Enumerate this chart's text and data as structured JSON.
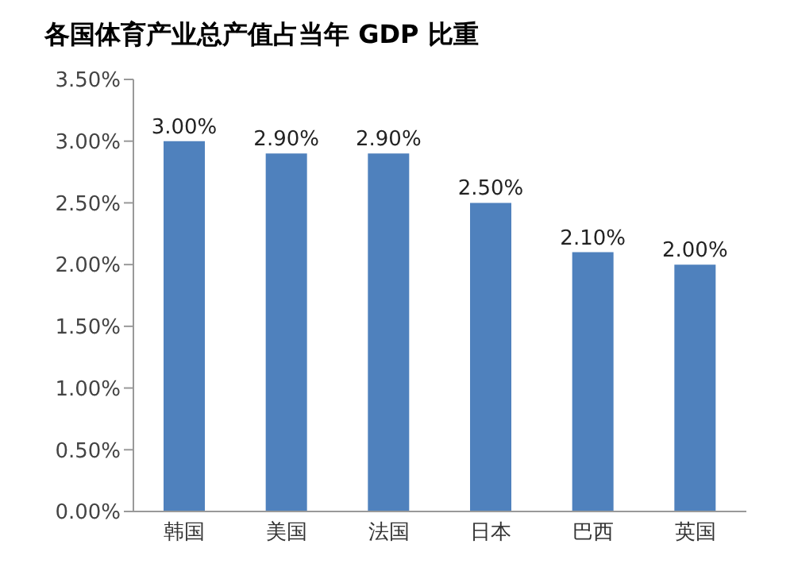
{
  "chart_data": {
    "type": "bar",
    "title": "各国体育产业总产值占当年 GDP 比重",
    "categories": [
      "韩国",
      "美国",
      "法国",
      "日本",
      "巴西",
      "英国"
    ],
    "values": [
      3.0,
      2.9,
      2.9,
      2.5,
      2.1,
      2.0
    ],
    "value_labels": [
      "3.00%",
      "2.90%",
      "2.90%",
      "2.50%",
      "2.10%",
      "2.00%"
    ],
    "color": "#4f81bd",
    "ylim": [
      0,
      3.5
    ],
    "yticks": [
      {
        "value": 0,
        "label": "0.00%"
      },
      {
        "value": 0.5,
        "label": "0.50%"
      },
      {
        "value": 1,
        "label": "1.00%"
      },
      {
        "value": 1.5,
        "label": "1.50%"
      },
      {
        "value": 2,
        "label": "2.00%"
      },
      {
        "value": 2.5,
        "label": "2.50%"
      },
      {
        "value": 3,
        "label": "3.00%"
      },
      {
        "value": 3.5,
        "label": "3.50%"
      }
    ],
    "grid": false
  }
}
